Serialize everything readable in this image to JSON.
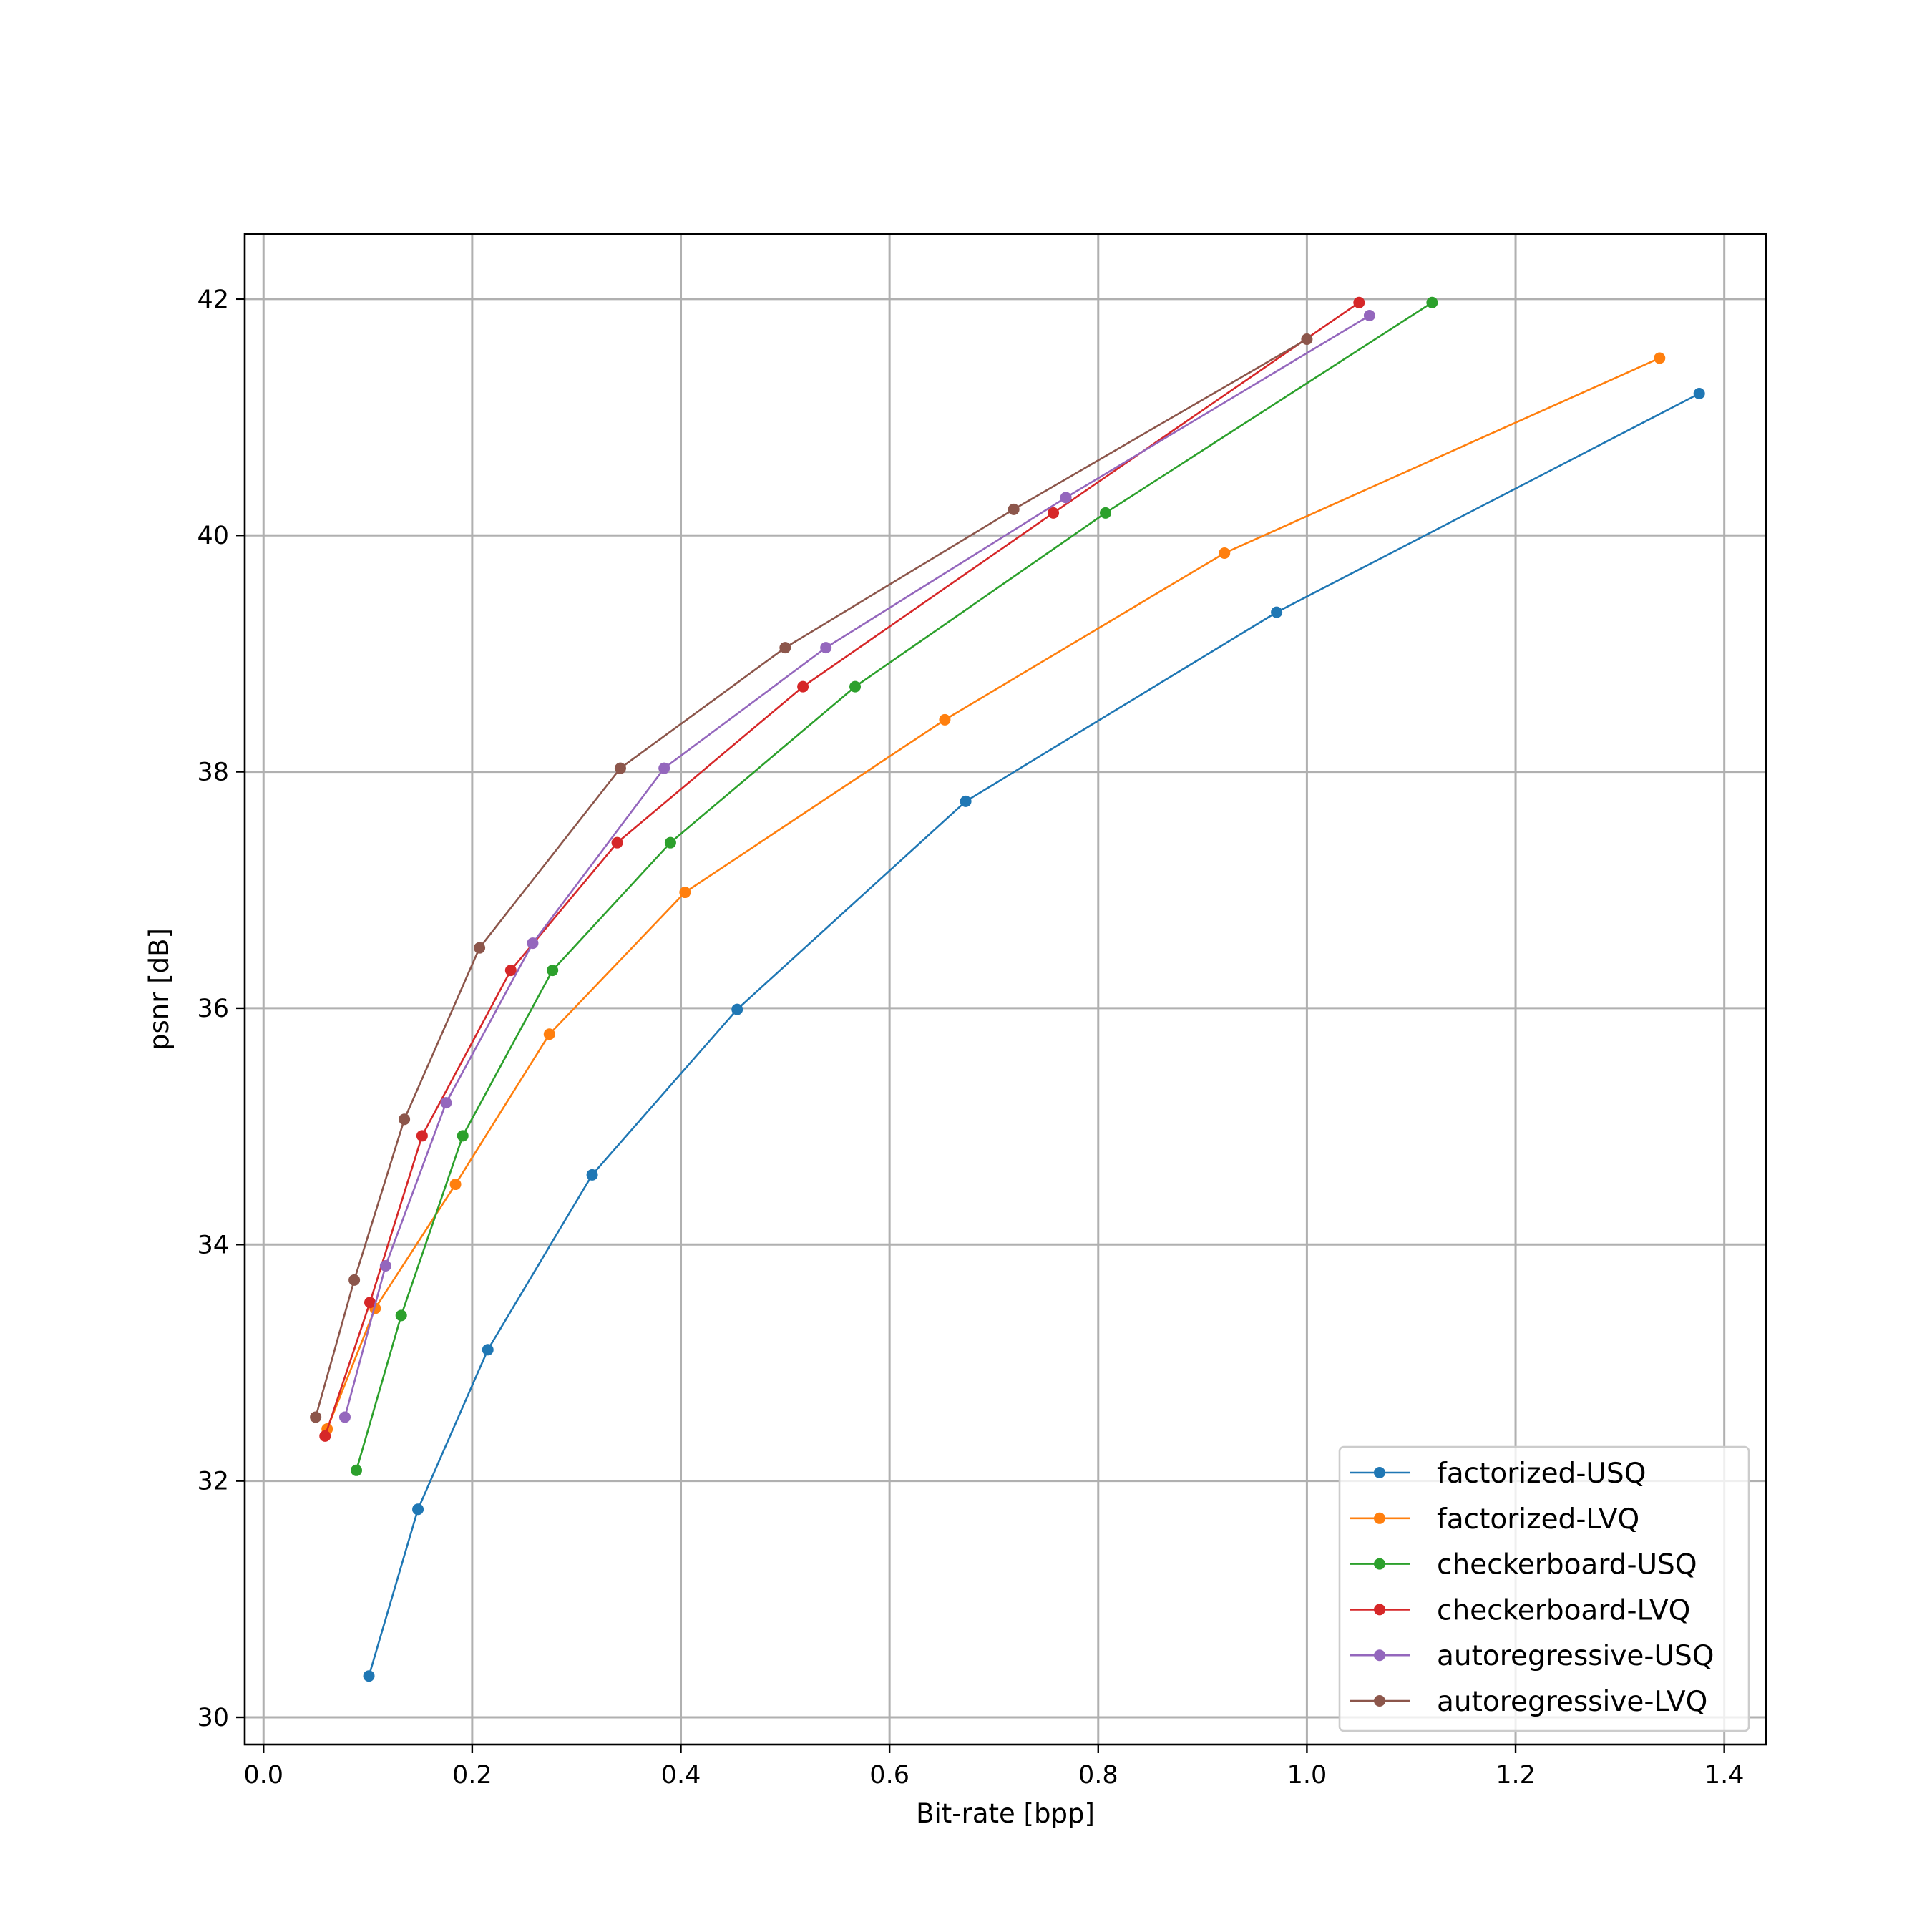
{
  "chart_data": {
    "type": "line",
    "title": "",
    "xlabel": "Bit-rate [bpp]",
    "ylabel": "psnr [dB]",
    "xlim": [
      -0.018,
      1.44
    ],
    "ylim": [
      29.77,
      42.55
    ],
    "xticks": [
      0.0,
      0.2,
      0.4,
      0.6,
      0.8,
      1.0,
      1.2,
      1.4
    ],
    "xtick_labels": [
      "0.0",
      "0.2",
      "0.4",
      "0.6",
      "0.8",
      "1.0",
      "1.2",
      "1.4"
    ],
    "yticks": [
      30,
      32,
      34,
      36,
      38,
      40,
      42
    ],
    "ytick_labels": [
      "30",
      "32",
      "34",
      "36",
      "38",
      "40",
      "42"
    ],
    "grid": true,
    "legend_position": "lower-right",
    "series": [
      {
        "name": "factorized-USQ",
        "color": "#1f77b4",
        "points": [
          [
            0.101,
            30.35
          ],
          [
            0.148,
            31.76
          ],
          [
            0.215,
            33.11
          ],
          [
            0.315,
            34.59
          ],
          [
            0.454,
            35.99
          ],
          [
            0.673,
            37.75
          ],
          [
            0.971,
            39.35
          ],
          [
            1.376,
            41.2
          ]
        ]
      },
      {
        "name": "factorized-LVQ",
        "color": "#ff7f0e",
        "points": [
          [
            0.061,
            32.44
          ],
          [
            0.107,
            33.46
          ],
          [
            0.184,
            34.51
          ],
          [
            0.274,
            35.78
          ],
          [
            0.404,
            36.98
          ],
          [
            0.653,
            38.44
          ],
          [
            0.921,
            39.85
          ],
          [
            1.338,
            41.5
          ]
        ]
      },
      {
        "name": "checkerboard-USQ",
        "color": "#2ca02c",
        "points": [
          [
            0.089,
            32.09
          ],
          [
            0.132,
            33.4
          ],
          [
            0.191,
            34.92
          ],
          [
            0.277,
            36.32
          ],
          [
            0.39,
            37.4
          ],
          [
            0.567,
            38.72
          ],
          [
            0.807,
            40.19
          ],
          [
            1.12,
            41.97
          ]
        ]
      },
      {
        "name": "checkerboard-LVQ",
        "color": "#d62728",
        "points": [
          [
            0.059,
            32.38
          ],
          [
            0.102,
            33.51
          ],
          [
            0.152,
            34.92
          ],
          [
            0.237,
            36.32
          ],
          [
            0.339,
            37.4
          ],
          [
            0.517,
            38.72
          ],
          [
            0.757,
            40.19
          ],
          [
            1.05,
            41.97
          ]
        ]
      },
      {
        "name": "autoregressive-USQ",
        "color": "#9467bd",
        "points": [
          [
            0.078,
            32.54
          ],
          [
            0.117,
            33.82
          ],
          [
            0.175,
            35.2
          ],
          [
            0.258,
            36.55
          ],
          [
            0.384,
            38.03
          ],
          [
            0.539,
            39.05
          ],
          [
            0.769,
            40.32
          ],
          [
            1.06,
            41.86
          ]
        ]
      },
      {
        "name": "autoregressive-LVQ",
        "color": "#8c564b",
        "points": [
          [
            0.05,
            32.54
          ],
          [
            0.087,
            33.7
          ],
          [
            0.135,
            35.06
          ],
          [
            0.207,
            36.51
          ],
          [
            0.342,
            38.03
          ],
          [
            0.5,
            39.05
          ],
          [
            0.719,
            40.22
          ],
          [
            1.0,
            41.66
          ]
        ]
      }
    ]
  }
}
